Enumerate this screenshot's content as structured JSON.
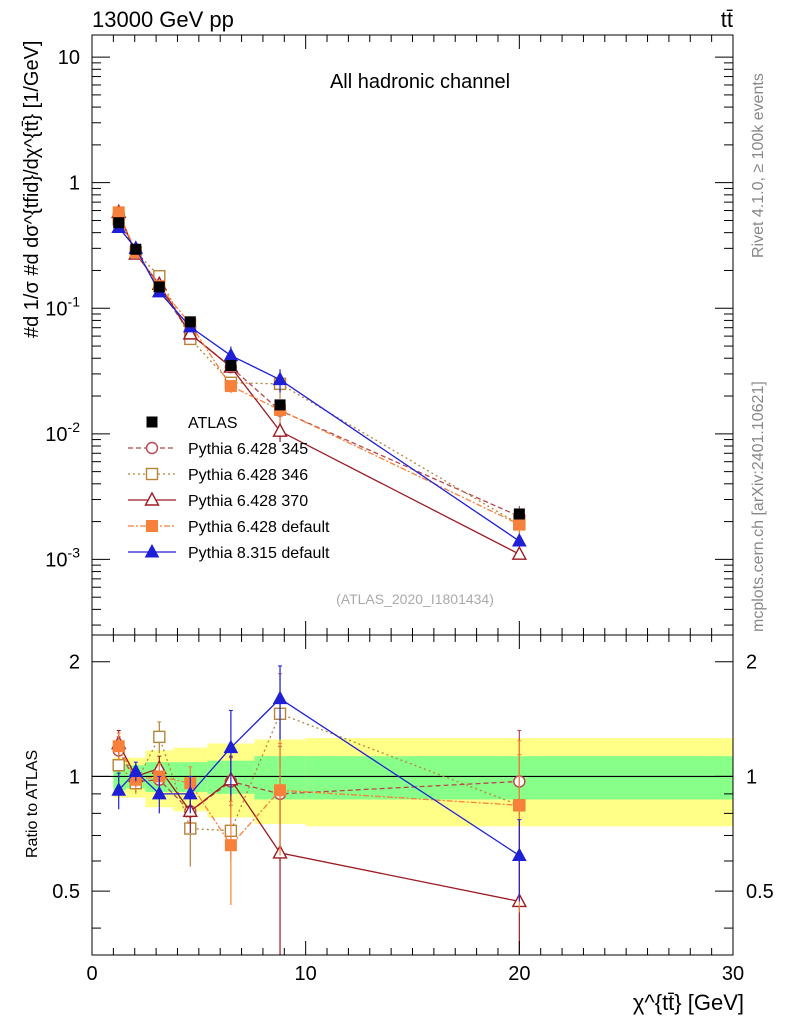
{
  "header": {
    "left": "13000 GeV pp",
    "right": "tt̄"
  },
  "side": {
    "rivet": "Rivet 4.1.0, ≥ 100k events",
    "mcplots": "mcplots.cern.ch [arXiv:2401.10621]"
  },
  "chart_data": {
    "type": "line",
    "title": "All hadronic channel",
    "analysis_label": "(ATLAS_2020_I1801434)",
    "xlabel": "χ^{tt̄} [GeV]",
    "ylabel": "#d 1/σ #d dσ^{tfid}/dχ^{tt̄} [1/GeV]",
    "ratio_ylabel": "Ratio to ATLAS",
    "xlim": [
      0,
      30
    ],
    "ylim": [
      0.00025,
      15
    ],
    "ratio_ylim": [
      0.34,
      2.35
    ],
    "yscale": "log",
    "ratio_yscale": "log",
    "x_ticks": [
      "0",
      "10",
      "20",
      "30"
    ],
    "y_ticks": [
      "10^{-3}",
      "10^{-2}",
      "10^{-1}",
      "1",
      "10"
    ],
    "ratio_y_ticks": [
      "0.5",
      "1",
      "2"
    ],
    "legend_position": "center-left",
    "bins": [
      [
        1,
        1.6
      ],
      [
        1.6,
        2.5
      ],
      [
        2.5,
        3.8
      ],
      [
        3.8,
        5.4
      ],
      [
        5.4,
        7.6
      ],
      [
        7.6,
        10
      ],
      [
        10,
        30
      ]
    ],
    "x": [
      1.25,
      2.05,
      3.15,
      4.6,
      6.5,
      8.8,
      20
    ],
    "reference": {
      "name": "ATLAS",
      "values": [
        0.48,
        0.295,
        0.148,
        0.078,
        0.035,
        0.017,
        0.0023
      ],
      "ratio_band_inner": [
        0.08,
        0.07,
        0.09,
        0.09,
        0.1,
        0.13,
        0.13
      ],
      "ratio_band_outer": [
        0.12,
        0.12,
        0.17,
        0.19,
        0.22,
        0.25,
        0.26
      ]
    },
    "series": [
      {
        "name": "Pythia 6.428 345",
        "color": "#b5484c",
        "dash": "5,3",
        "marker": "open-circle",
        "values": [
          0.56,
          0.285,
          0.145,
          0.063,
          0.034,
          0.0153,
          0.0022
        ],
        "ratio": [
          1.17,
          0.97,
          0.98,
          0.81,
          0.97,
          0.9,
          0.97
        ],
        "ratio_err": [
          0.1,
          0.06,
          0.08,
          0.1,
          0.15,
          0.3,
          0.35
        ]
      },
      {
        "name": "Pythia 6.428 346",
        "color": "#b5833a",
        "dash": "2,3",
        "marker": "open-square",
        "values": [
          0.51,
          0.28,
          0.18,
          0.057,
          0.0255,
          0.025,
          0.0019
        ],
        "ratio": [
          1.07,
          0.96,
          1.27,
          0.73,
          0.72,
          1.46,
          0.84
        ],
        "ratio_err": [
          0.1,
          0.06,
          0.12,
          0.15,
          0.12,
          0.4,
          0.3
        ]
      },
      {
        "name": "Pythia 6.428 370",
        "color": "#9b1b22",
        "dash": "",
        "marker": "open-triangle",
        "values": [
          0.58,
          0.27,
          0.155,
          0.0625,
          0.034,
          0.0105,
          0.0011
        ],
        "ratio": [
          1.22,
          1.0,
          1.05,
          0.81,
          0.98,
          0.63,
          0.47
        ],
        "ratio_err": [
          0.1,
          0.06,
          0.08,
          0.1,
          0.15,
          0.3,
          0.15
        ]
      },
      {
        "name": "Pythia 6.428 default",
        "color": "#f7803a",
        "dash": "6,2,2,2",
        "marker": "filled-square",
        "values": [
          0.58,
          0.28,
          0.15,
          0.075,
          0.024,
          0.0155,
          0.0019
        ],
        "ratio": [
          1.2,
          0.98,
          1.0,
          0.96,
          0.66,
          0.92,
          0.84
        ],
        "ratio_err": [
          0.1,
          0.06,
          0.08,
          0.1,
          0.2,
          0.3,
          0.4
        ]
      },
      {
        "name": "Pythia 8.315 default",
        "color": "#1f1fd6",
        "dash": "",
        "marker": "filled-triangle",
        "values": [
          0.44,
          0.3,
          0.135,
          0.071,
          0.042,
          0.027,
          0.0014
        ],
        "ratio": [
          0.92,
          1.03,
          0.9,
          0.9,
          1.19,
          1.6,
          0.62
        ],
        "ratio_err": [
          0.1,
          0.06,
          0.1,
          0.1,
          0.3,
          0.35,
          0.15
        ]
      }
    ]
  }
}
